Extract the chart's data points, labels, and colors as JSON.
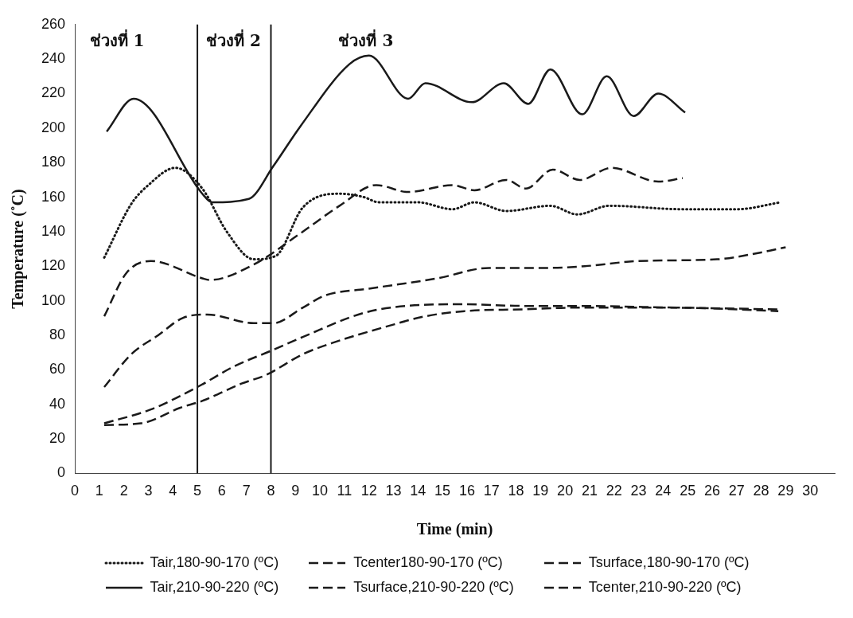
{
  "chart_data": {
    "type": "line",
    "xlabel": "Time (min)",
    "ylabel": "Temperature (˚C)",
    "xlim": [
      0,
      31
    ],
    "xticks": [
      0,
      1,
      2,
      3,
      4,
      5,
      6,
      7,
      8,
      9,
      10,
      11,
      12,
      13,
      14,
      15,
      16,
      17,
      18,
      19,
      20,
      21,
      22,
      23,
      24,
      25,
      26,
      27,
      28,
      29,
      30
    ],
    "ylim": [
      0,
      260
    ],
    "yticks": [
      0,
      20,
      40,
      60,
      80,
      100,
      120,
      140,
      160,
      180,
      200,
      220,
      240,
      260
    ],
    "grid": false,
    "legend": "bottom",
    "marker": "none",
    "ref_lines": [
      {
        "axis": "x",
        "value": 5,
        "color": "#1a1a1a",
        "line_style": "solid"
      },
      {
        "axis": "x",
        "value": 8,
        "color": "#1a1a1a",
        "line_style": "solid"
      }
    ],
    "annotations": [
      "ช่วงที่ 1",
      "ช่วงที่ 2",
      "ช่วงที่ 3"
    ],
    "series": [
      {
        "name": "Tair,180-90-170 (ºC)",
        "color": "#1a1a1a",
        "line_style": "dotted",
        "x": [
          1.2,
          2.3,
          3.0,
          4.1,
          5.2,
          6.2,
          7.3,
          8.2,
          9.3,
          10.8,
          11.8,
          12.4,
          14.0,
          15.4,
          16.3,
          17.6,
          19.4,
          20.5,
          21.8,
          24.8,
          27.0,
          28.8
        ],
        "values": [
          125,
          156,
          167,
          177,
          165,
          140,
          124,
          126,
          154,
          162,
          160,
          157,
          157,
          153,
          157,
          152,
          155,
          150,
          155,
          153,
          153,
          157
        ]
      },
      {
        "name": "Tcenter180-90-170 (ºC)",
        "color": "#1a1a1a",
        "line_style": "dashed",
        "x": [
          1.2,
          2.7,
          4.3,
          5.2,
          6.8,
          7.8,
          9.3,
          10.6,
          12.7,
          14.3,
          15.9,
          18.3,
          20.3,
          24.6,
          28.7
        ],
        "values": [
          28,
          29,
          38,
          42,
          52,
          57,
          69,
          76,
          85,
          91,
          94,
          95,
          96,
          96,
          94
        ]
      },
      {
        "name": "Tsurface,180-90-170 (ºC)",
        "color": "#1a1a1a",
        "line_style": "dashed",
        "x": [
          1.2,
          2.3,
          3.4,
          4.4,
          5.4,
          7.3,
          8.1,
          9.3,
          10.2,
          12.0,
          14.8,
          16.9,
          19.2,
          20.8,
          23.0,
          26.2,
          28.0,
          29.0
        ],
        "values": [
          50,
          69,
          80,
          90,
          92,
          87,
          87,
          96,
          103,
          107,
          113,
          119,
          119,
          120,
          123,
          124,
          128,
          131
        ]
      },
      {
        "name": "Tair,210-90-220 (ºC)",
        "color": "#1a1a1a",
        "line_style": "solid",
        "x": [
          1.3,
          2.4,
          5.2,
          5.6,
          7.1,
          8.1,
          9.2,
          11.2,
          12.0,
          13.6,
          14.3,
          16.2,
          17.5,
          18.5,
          19.4,
          20.7,
          21.7,
          22.8,
          23.8,
          24.9
        ],
        "values": [
          198,
          217,
          162,
          157,
          159,
          178,
          201,
          237,
          242,
          217,
          226,
          215,
          226,
          214,
          234,
          208,
          230,
          207,
          220,
          209
        ]
      },
      {
        "name": "Tsurface,210-90-220 (ºC)",
        "color": "#1a1a1a",
        "line_style": "dashed",
        "x": [
          1.2,
          2.1,
          3.1,
          5.2,
          5.5,
          7.3,
          9.2,
          10.8,
          12.3,
          13.6,
          15.4,
          16.3,
          17.6,
          18.4,
          19.5,
          20.6,
          21.9,
          23.8,
          24.8
        ],
        "values": [
          91,
          116,
          123,
          113,
          112,
          121,
          139,
          155,
          167,
          163,
          167,
          164,
          170,
          165,
          176,
          170,
          177,
          169,
          171
        ]
      },
      {
        "name": "Tcenter,210-90-220 (ºC)",
        "color": "#1a1a1a",
        "line_style": "dashed",
        "x": [
          1.2,
          3.1,
          5.0,
          6.5,
          8.0,
          9.3,
          11.8,
          13.5,
          15.9,
          18.3,
          20.3,
          24.6,
          28.7
        ],
        "values": [
          29,
          37,
          50,
          62,
          71,
          79,
          93,
          97,
          98,
          97,
          97,
          96,
          95
        ]
      }
    ]
  }
}
